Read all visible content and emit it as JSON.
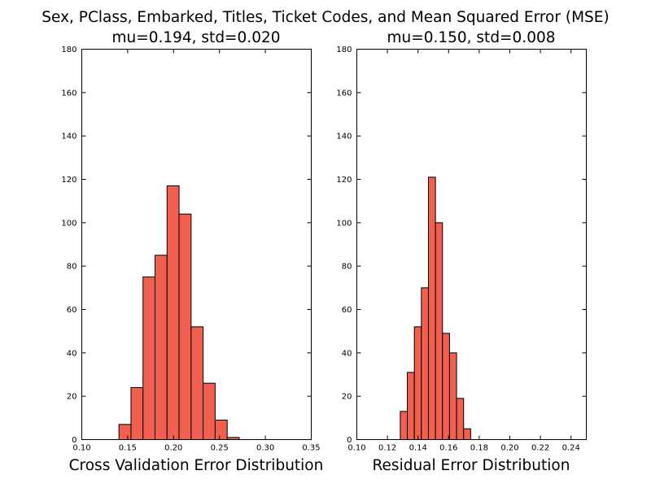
{
  "title": "Sex, PClass, Embarked, Titles, Ticket Codes, and Mean Squared Error (MSE)",
  "bar_color": "#f05f50",
  "edge_color": "#000000",
  "chart_data": [
    {
      "type": "bar",
      "subtitle": "mu=0.194, std=0.020",
      "xlabel": "Cross Validation Error Distribution",
      "xlim": [
        0.1,
        0.35
      ],
      "ylim": [
        0,
        180
      ],
      "xticks": [
        "0.10",
        "0.15",
        "0.20",
        "0.25",
        "0.30",
        "0.35"
      ],
      "yticks": [
        "0",
        "20",
        "40",
        "60",
        "80",
        "100",
        "120",
        "140",
        "160",
        "180"
      ],
      "bin_width": 0.0131,
      "bins": [
        {
          "x": 0.1405,
          "count": 7
        },
        {
          "x": 0.1536,
          "count": 24
        },
        {
          "x": 0.1667,
          "count": 75
        },
        {
          "x": 0.1798,
          "count": 85
        },
        {
          "x": 0.1929,
          "count": 117
        },
        {
          "x": 0.206,
          "count": 104
        },
        {
          "x": 0.2191,
          "count": 52
        },
        {
          "x": 0.2322,
          "count": 26
        },
        {
          "x": 0.2453,
          "count": 9
        },
        {
          "x": 0.2584,
          "count": 1
        }
      ]
    },
    {
      "type": "bar",
      "subtitle": "mu=0.150, std=0.008",
      "xlabel": "Residual Error Distribution",
      "xlim": [
        0.1,
        0.25
      ],
      "ylim": [
        0,
        180
      ],
      "xticks": [
        "0.10",
        "0.12",
        "0.14",
        "0.16",
        "0.18",
        "0.20",
        "0.22",
        "0.24"
      ],
      "yticks": [
        "0",
        "20",
        "40",
        "60",
        "80",
        "100",
        "120",
        "140",
        "160",
        "180"
      ],
      "bin_width": 0.0046,
      "bins": [
        {
          "x": 0.1284,
          "count": 13
        },
        {
          "x": 0.133,
          "count": 31
        },
        {
          "x": 0.1376,
          "count": 52
        },
        {
          "x": 0.1422,
          "count": 70
        },
        {
          "x": 0.1468,
          "count": 121
        },
        {
          "x": 0.1514,
          "count": 100
        },
        {
          "x": 0.156,
          "count": 49
        },
        {
          "x": 0.1606,
          "count": 40
        },
        {
          "x": 0.1652,
          "count": 19
        },
        {
          "x": 0.1698,
          "count": 5
        }
      ]
    }
  ]
}
